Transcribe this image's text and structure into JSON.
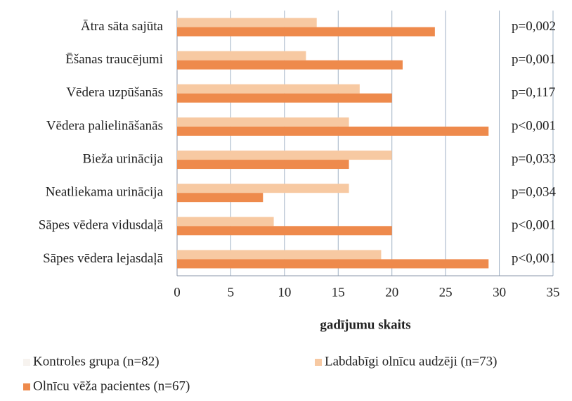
{
  "chart_data": {
    "type": "hbar",
    "categories": [
      "Ātra sāta sajūta",
      "Ēšanas traucējumi",
      "Vēdera uzpūšanās",
      "Vēdera palielināšanās",
      "Bieža urinācija",
      "Neatliekama urinācija",
      "Sāpes vēdera vidusdaļā",
      "Sāpes vēdera lejasdaļā"
    ],
    "series": [
      {
        "name": "Kontroles grupa (n=82)",
        "color": "#f7f3ef",
        "values": [
          null,
          null,
          null,
          null,
          null,
          null,
          null,
          null
        ]
      },
      {
        "name": "Labdabīgi olnīcu audzēji (n=73)",
        "color": "#f7c9a2",
        "values": [
          13,
          12,
          17,
          16,
          20,
          16,
          9,
          19
        ]
      },
      {
        "name": "Olnīcu vēža pacientes (n=67)",
        "color": "#ee8a4c",
        "values": [
          24,
          21,
          20,
          29,
          16,
          8,
          20,
          29
        ]
      }
    ],
    "annotations": [
      "p=0,002",
      "p=0,001",
      "p=0,117",
      "p<0,001",
      "p=0,033",
      "p=0,034",
      "p<0,001",
      "p<0,001"
    ],
    "xlabel": "gadījumu skaits",
    "xlim": [
      0,
      35
    ],
    "xticks": [
      0,
      5,
      10,
      15,
      20,
      25,
      30,
      35
    ],
    "grid": true
  }
}
